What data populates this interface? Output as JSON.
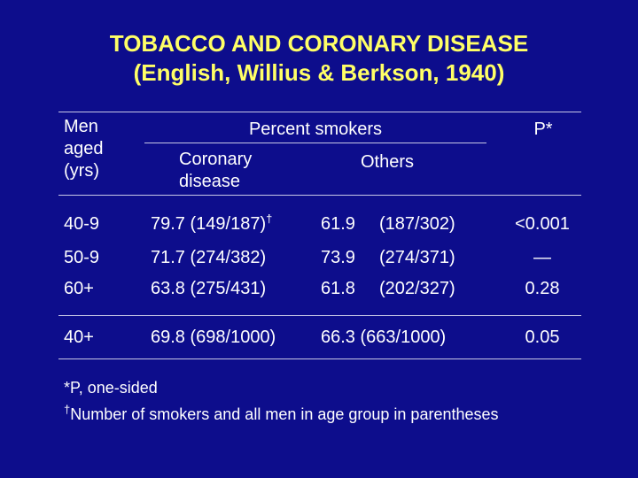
{
  "title": {
    "line1": "TOBACCO AND CORONARY DISEASE",
    "line2": "(English, Willius & Berkson, 1940)"
  },
  "colors": {
    "background": "#0d0d8c",
    "title": "#ffff66",
    "text": "#ffffff",
    "rule": "#c8c8e6"
  },
  "header": {
    "age_line1": "Men",
    "age_line2": "aged",
    "age_line3": "(yrs)",
    "percent_smokers": "Percent smokers",
    "coronary_line1": "Coronary",
    "coronary_line2": "disease",
    "others": "Others",
    "p": "P*"
  },
  "rows": [
    {
      "age": "40-9",
      "coronary_pct": "79.7",
      "coronary_n": "(149/187)",
      "coronary_mark": "†",
      "others_pct": "61.9",
      "others_n": "(187/302)",
      "p": "<0.001"
    },
    {
      "age": "50-9",
      "coronary_pct": "71.7",
      "coronary_n": "(274/382)",
      "coronary_mark": "",
      "others_pct": "73.9",
      "others_n": "(274/371)",
      "p": "—"
    },
    {
      "age": "60+",
      "coronary_pct": "63.8",
      "coronary_n": "(275/431)",
      "coronary_mark": "",
      "others_pct": "61.8",
      "others_n": "(202/327)",
      "p": "0.28"
    }
  ],
  "total": {
    "age": "40+",
    "coronary": "69.8 (698/1000)",
    "others": "66.3 (663/1000)",
    "p": "0.05"
  },
  "footnotes": {
    "note1": "*P, one-sided",
    "note2_mark": "†",
    "note2": "Number of smokers and all men in age group in parentheses"
  }
}
